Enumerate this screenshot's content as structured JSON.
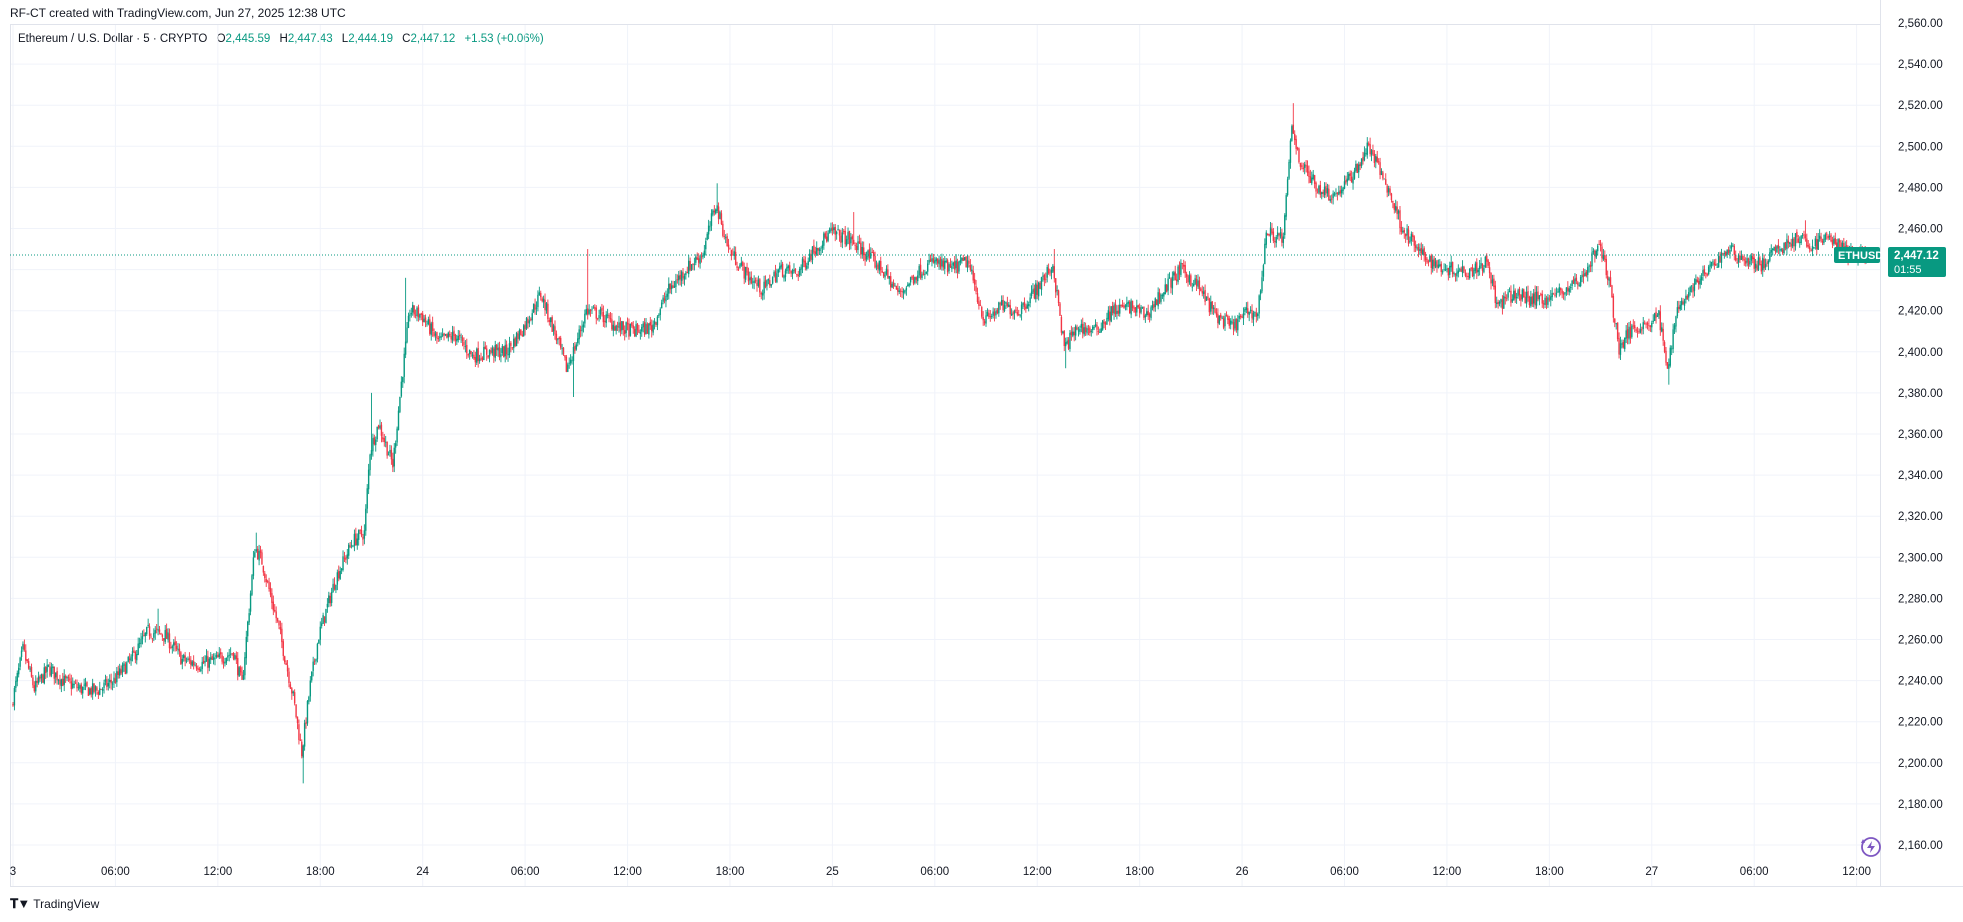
{
  "header": {
    "text": "RF-CT created with TradingView.com, Jun 27, 2025 12:38 UTC"
  },
  "legend": {
    "symbol": "Ethereum / U.S. Dollar · 5 · CRYPTO",
    "open_key": "O",
    "open": "2,445.59",
    "high_key": "H",
    "high": "2,447.43",
    "low_key": "L",
    "low": "2,444.19",
    "close_key": "C",
    "close": "2,447.12",
    "change": "+1.53 (+0.06%)"
  },
  "price_tag": {
    "symbol": "ETHUSD",
    "price": "2,447.12",
    "countdown": "01:55"
  },
  "footer": {
    "brand": "TradingView",
    "logo": "tradingview-logo-icon"
  },
  "icons": {
    "replay": "replay-bolt-icon"
  },
  "colors": {
    "up": "#089981",
    "down": "#F23645",
    "grid": "#F0F3FA",
    "axis_text": "#131722",
    "accent": "#089981",
    "replay": "#7E57C2"
  },
  "chart_data": {
    "type": "candlestick",
    "title": "Ethereum / U.S. Dollar · 5 · CRYPTO",
    "interval": "5",
    "ylim": [
      2160,
      2560
    ],
    "y_ticks": [
      "2,160.00",
      "2,180.00",
      "2,200.00",
      "2,220.00",
      "2,240.00",
      "2,260.00",
      "2,280.00",
      "2,300.00",
      "2,320.00",
      "2,340.00",
      "2,360.00",
      "2,380.00",
      "2,400.00",
      "2,420.00",
      "2,440.00",
      "2,460.00",
      "2,480.00",
      "2,500.00",
      "2,520.00",
      "2,540.00",
      "2,560.00"
    ],
    "y_tick_values": [
      2160,
      2180,
      2200,
      2220,
      2240,
      2260,
      2280,
      2300,
      2320,
      2340,
      2360,
      2380,
      2400,
      2420,
      2440,
      2460,
      2480,
      2500,
      2520,
      2540,
      2560
    ],
    "x_start": "2025-06-23 00:00",
    "x_end": "2025-06-27 12:40",
    "x_ticks": [
      {
        "label": "3",
        "time": "2025-06-23 00:00"
      },
      {
        "label": "06:00",
        "time": "2025-06-23 06:00"
      },
      {
        "label": "12:00",
        "time": "2025-06-23 12:00"
      },
      {
        "label": "18:00",
        "time": "2025-06-23 18:00"
      },
      {
        "label": "24",
        "time": "2025-06-24 00:00"
      },
      {
        "label": "06:00",
        "time": "2025-06-24 06:00"
      },
      {
        "label": "12:00",
        "time": "2025-06-24 12:00"
      },
      {
        "label": "18:00",
        "time": "2025-06-24 18:00"
      },
      {
        "label": "25",
        "time": "2025-06-25 00:00"
      },
      {
        "label": "06:00",
        "time": "2025-06-25 06:00"
      },
      {
        "label": "12:00",
        "time": "2025-06-25 12:00"
      },
      {
        "label": "18:00",
        "time": "2025-06-25 18:00"
      },
      {
        "label": "26",
        "time": "2025-06-26 00:00"
      },
      {
        "label": "06:00",
        "time": "2025-06-26 06:00"
      },
      {
        "label": "12:00",
        "time": "2025-06-26 12:00"
      },
      {
        "label": "18:00",
        "time": "2025-06-26 18:00"
      },
      {
        "label": "27",
        "time": "2025-06-27 00:00"
      },
      {
        "label": "06:00",
        "time": "2025-06-27 06:00"
      },
      {
        "label": "12:00",
        "time": "2025-06-27 12:00"
      }
    ],
    "last_price": 2447.12,
    "grid": true,
    "price_path": [
      [
        "2025-06-23 00:00",
        2228
      ],
      [
        "2025-06-23 00:40",
        2255
      ],
      [
        "2025-06-23 01:20",
        2236
      ],
      [
        "2025-06-23 02:10",
        2246
      ],
      [
        "2025-06-23 03:00",
        2240
      ],
      [
        "2025-06-23 04:00",
        2236
      ],
      [
        "2025-06-23 05:00",
        2235
      ],
      [
        "2025-06-23 06:00",
        2240
      ],
      [
        "2025-06-23 07:00",
        2250
      ],
      [
        "2025-06-23 08:00",
        2264
      ],
      [
        "2025-06-23 09:00",
        2262
      ],
      [
        "2025-06-23 10:00",
        2250
      ],
      [
        "2025-06-23 11:00",
        2248
      ],
      [
        "2025-06-23 12:00",
        2250
      ],
      [
        "2025-06-23 13:00",
        2254
      ],
      [
        "2025-06-23 13:30",
        2238
      ],
      [
        "2025-06-23 14:15",
        2305
      ],
      [
        "2025-06-23 14:40",
        2298
      ],
      [
        "2025-06-23 15:40",
        2265
      ],
      [
        "2025-06-23 16:30",
        2232
      ],
      [
        "2025-06-23 17:00",
        2205
      ],
      [
        "2025-06-23 17:30",
        2238
      ],
      [
        "2025-06-23 18:00",
        2262
      ],
      [
        "2025-06-23 19:00",
        2290
      ],
      [
        "2025-06-23 20:00",
        2308
      ],
      [
        "2025-06-23 20:40",
        2312
      ],
      [
        "2025-06-23 21:00",
        2352
      ],
      [
        "2025-06-23 21:30",
        2365
      ],
      [
        "2025-06-23 22:20",
        2345
      ],
      [
        "2025-06-23 22:50",
        2385
      ],
      [
        "2025-06-23 23:20",
        2420
      ],
      [
        "2025-06-24 00:00",
        2418
      ],
      [
        "2025-06-24 01:00",
        2405
      ],
      [
        "2025-06-24 02:00",
        2408
      ],
      [
        "2025-06-24 03:00",
        2398
      ],
      [
        "2025-06-24 04:00",
        2400
      ],
      [
        "2025-06-24 05:00",
        2400
      ],
      [
        "2025-06-24 06:00",
        2412
      ],
      [
        "2025-06-24 07:00",
        2428
      ],
      [
        "2025-06-24 08:00",
        2405
      ],
      [
        "2025-06-24 08:30",
        2392
      ],
      [
        "2025-06-24 09:00",
        2402
      ],
      [
        "2025-06-24 09:40",
        2420
      ],
      [
        "2025-06-24 10:30",
        2418
      ],
      [
        "2025-06-24 11:30",
        2412
      ],
      [
        "2025-06-24 12:30",
        2410
      ],
      [
        "2025-06-24 13:30",
        2412
      ],
      [
        "2025-06-24 14:30",
        2430
      ],
      [
        "2025-06-24 15:30",
        2440
      ],
      [
        "2025-06-24 16:30",
        2448
      ],
      [
        "2025-06-24 17:15",
        2472
      ],
      [
        "2025-06-24 18:00",
        2450
      ],
      [
        "2025-06-24 19:00",
        2438
      ],
      [
        "2025-06-24 20:00",
        2430
      ],
      [
        "2025-06-24 21:00",
        2440
      ],
      [
        "2025-06-24 22:00",
        2438
      ],
      [
        "2025-06-24 23:00",
        2450
      ],
      [
        "2025-06-25 00:00",
        2458
      ],
      [
        "2025-06-25 01:00",
        2455
      ],
      [
        "2025-06-25 02:00",
        2448
      ],
      [
        "2025-06-25 03:00",
        2440
      ],
      [
        "2025-06-25 04:00",
        2428
      ],
      [
        "2025-06-25 05:00",
        2438
      ],
      [
        "2025-06-25 06:00",
        2444
      ],
      [
        "2025-06-25 07:00",
        2440
      ],
      [
        "2025-06-25 08:00",
        2444
      ],
      [
        "2025-06-25 09:00",
        2415
      ],
      [
        "2025-06-25 10:00",
        2422
      ],
      [
        "2025-06-25 11:00",
        2420
      ],
      [
        "2025-06-25 12:00",
        2430
      ],
      [
        "2025-06-25 13:00",
        2442
      ],
      [
        "2025-06-25 13:40",
        2402
      ],
      [
        "2025-06-25 14:30",
        2412
      ],
      [
        "2025-06-25 15:30",
        2410
      ],
      [
        "2025-06-25 16:30",
        2420
      ],
      [
        "2025-06-25 17:30",
        2422
      ],
      [
        "2025-06-25 18:30",
        2418
      ],
      [
        "2025-06-25 19:30",
        2430
      ],
      [
        "2025-06-25 20:30",
        2440
      ],
      [
        "2025-06-25 21:30",
        2432
      ],
      [
        "2025-06-25 22:30",
        2418
      ],
      [
        "2025-06-25 23:30",
        2412
      ],
      [
        "2025-06-26 00:30",
        2420
      ],
      [
        "2025-06-26 01:00",
        2418
      ],
      [
        "2025-06-26 01:30",
        2458
      ],
      [
        "2025-06-26 02:30",
        2455
      ],
      [
        "2025-06-26 03:00",
        2510
      ],
      [
        "2025-06-26 03:30",
        2492
      ],
      [
        "2025-06-26 04:30",
        2480
      ],
      [
        "2025-06-26 05:30",
        2476
      ],
      [
        "2025-06-26 06:30",
        2485
      ],
      [
        "2025-06-26 07:30",
        2500
      ],
      [
        "2025-06-26 08:30",
        2482
      ],
      [
        "2025-06-26 09:30",
        2460
      ],
      [
        "2025-06-26 10:30",
        2448
      ],
      [
        "2025-06-26 11:30",
        2442
      ],
      [
        "2025-06-26 12:30",
        2440
      ],
      [
        "2025-06-26 13:30",
        2440
      ],
      [
        "2025-06-26 14:30",
        2444
      ],
      [
        "2025-06-26 15:00",
        2422
      ],
      [
        "2025-06-26 16:00",
        2428
      ],
      [
        "2025-06-26 17:00",
        2426
      ],
      [
        "2025-06-26 18:00",
        2426
      ],
      [
        "2025-06-26 19:00",
        2430
      ],
      [
        "2025-06-26 20:00",
        2436
      ],
      [
        "2025-06-26 21:00",
        2452
      ],
      [
        "2025-06-26 21:30",
        2438
      ],
      [
        "2025-06-26 22:10",
        2402
      ],
      [
        "2025-06-26 23:00",
        2412
      ],
      [
        "2025-06-27 00:00",
        2414
      ],
      [
        "2025-06-27 00:30",
        2418
      ],
      [
        "2025-06-27 01:00",
        2390
      ],
      [
        "2025-06-27 01:30",
        2420
      ],
      [
        "2025-06-27 02:30",
        2432
      ],
      [
        "2025-06-27 03:30",
        2440
      ],
      [
        "2025-06-27 04:30",
        2450
      ],
      [
        "2025-06-27 05:30",
        2445
      ],
      [
        "2025-06-27 06:30",
        2442
      ],
      [
        "2025-06-27 07:30",
        2450
      ],
      [
        "2025-06-27 08:30",
        2455
      ],
      [
        "2025-06-27 09:30",
        2452
      ],
      [
        "2025-06-27 10:30",
        2456
      ],
      [
        "2025-06-27 11:30",
        2448
      ],
      [
        "2025-06-27 12:40",
        2447.12
      ]
    ],
    "extremes": [
      [
        "2025-06-23 00:40",
        2260,
        "high"
      ],
      [
        "2025-06-23 08:30",
        2275,
        "high"
      ],
      [
        "2025-06-23 14:15",
        2312,
        "high"
      ],
      [
        "2025-06-23 17:00",
        2190,
        "low"
      ],
      [
        "2025-06-23 21:00",
        2380,
        "high"
      ],
      [
        "2025-06-23 23:00",
        2436,
        "high"
      ],
      [
        "2025-06-24 08:50",
        2378,
        "low"
      ],
      [
        "2025-06-24 09:40",
        2450,
        "high"
      ],
      [
        "2025-06-24 17:15",
        2482,
        "high"
      ],
      [
        "2025-06-25 01:15",
        2468,
        "high"
      ],
      [
        "2025-06-25 13:40",
        2392,
        "low"
      ],
      [
        "2025-06-25 13:00",
        2450,
        "high"
      ],
      [
        "2025-06-26 03:00",
        2521,
        "high"
      ],
      [
        "2025-06-26 07:30",
        2502,
        "high"
      ],
      [
        "2025-06-26 22:10",
        2396,
        "low"
      ],
      [
        "2025-06-27 01:00",
        2384,
        "low"
      ],
      [
        "2025-06-27 09:00",
        2464,
        "high"
      ]
    ]
  }
}
